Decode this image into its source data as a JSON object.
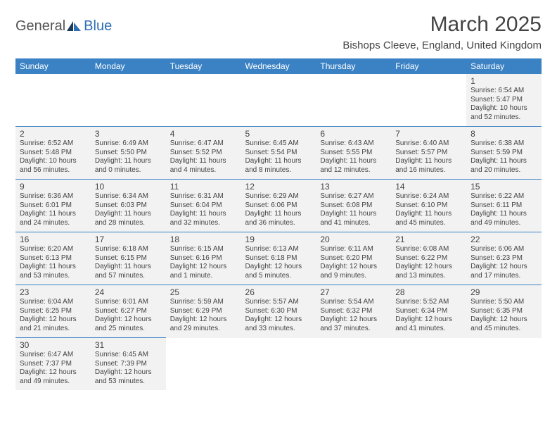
{
  "logo": {
    "text1": "General",
    "text2": "Blue"
  },
  "title": "March 2025",
  "location": "Bishops Cleeve, England, United Kingdom",
  "colors": {
    "header_bg": "#3b82c4",
    "header_text": "#ffffff",
    "cell_bg": "#f2f2f2",
    "border": "#3b82c4",
    "text": "#444444",
    "logo_gray": "#555555",
    "logo_blue": "#2e6fb4"
  },
  "weekdays": [
    "Sunday",
    "Monday",
    "Tuesday",
    "Wednesday",
    "Thursday",
    "Friday",
    "Saturday"
  ],
  "weeks": [
    [
      null,
      null,
      null,
      null,
      null,
      null,
      {
        "n": "1",
        "sunrise": "Sunrise: 6:54 AM",
        "sunset": "Sunset: 5:47 PM",
        "day1": "Daylight: 10 hours",
        "day2": "and 52 minutes."
      }
    ],
    [
      {
        "n": "2",
        "sunrise": "Sunrise: 6:52 AM",
        "sunset": "Sunset: 5:48 PM",
        "day1": "Daylight: 10 hours",
        "day2": "and 56 minutes."
      },
      {
        "n": "3",
        "sunrise": "Sunrise: 6:49 AM",
        "sunset": "Sunset: 5:50 PM",
        "day1": "Daylight: 11 hours",
        "day2": "and 0 minutes."
      },
      {
        "n": "4",
        "sunrise": "Sunrise: 6:47 AM",
        "sunset": "Sunset: 5:52 PM",
        "day1": "Daylight: 11 hours",
        "day2": "and 4 minutes."
      },
      {
        "n": "5",
        "sunrise": "Sunrise: 6:45 AM",
        "sunset": "Sunset: 5:54 PM",
        "day1": "Daylight: 11 hours",
        "day2": "and 8 minutes."
      },
      {
        "n": "6",
        "sunrise": "Sunrise: 6:43 AM",
        "sunset": "Sunset: 5:55 PM",
        "day1": "Daylight: 11 hours",
        "day2": "and 12 minutes."
      },
      {
        "n": "7",
        "sunrise": "Sunrise: 6:40 AM",
        "sunset": "Sunset: 5:57 PM",
        "day1": "Daylight: 11 hours",
        "day2": "and 16 minutes."
      },
      {
        "n": "8",
        "sunrise": "Sunrise: 6:38 AM",
        "sunset": "Sunset: 5:59 PM",
        "day1": "Daylight: 11 hours",
        "day2": "and 20 minutes."
      }
    ],
    [
      {
        "n": "9",
        "sunrise": "Sunrise: 6:36 AM",
        "sunset": "Sunset: 6:01 PM",
        "day1": "Daylight: 11 hours",
        "day2": "and 24 minutes."
      },
      {
        "n": "10",
        "sunrise": "Sunrise: 6:34 AM",
        "sunset": "Sunset: 6:03 PM",
        "day1": "Daylight: 11 hours",
        "day2": "and 28 minutes."
      },
      {
        "n": "11",
        "sunrise": "Sunrise: 6:31 AM",
        "sunset": "Sunset: 6:04 PM",
        "day1": "Daylight: 11 hours",
        "day2": "and 32 minutes."
      },
      {
        "n": "12",
        "sunrise": "Sunrise: 6:29 AM",
        "sunset": "Sunset: 6:06 PM",
        "day1": "Daylight: 11 hours",
        "day2": "and 36 minutes."
      },
      {
        "n": "13",
        "sunrise": "Sunrise: 6:27 AM",
        "sunset": "Sunset: 6:08 PM",
        "day1": "Daylight: 11 hours",
        "day2": "and 41 minutes."
      },
      {
        "n": "14",
        "sunrise": "Sunrise: 6:24 AM",
        "sunset": "Sunset: 6:10 PM",
        "day1": "Daylight: 11 hours",
        "day2": "and 45 minutes."
      },
      {
        "n": "15",
        "sunrise": "Sunrise: 6:22 AM",
        "sunset": "Sunset: 6:11 PM",
        "day1": "Daylight: 11 hours",
        "day2": "and 49 minutes."
      }
    ],
    [
      {
        "n": "16",
        "sunrise": "Sunrise: 6:20 AM",
        "sunset": "Sunset: 6:13 PM",
        "day1": "Daylight: 11 hours",
        "day2": "and 53 minutes."
      },
      {
        "n": "17",
        "sunrise": "Sunrise: 6:18 AM",
        "sunset": "Sunset: 6:15 PM",
        "day1": "Daylight: 11 hours",
        "day2": "and 57 minutes."
      },
      {
        "n": "18",
        "sunrise": "Sunrise: 6:15 AM",
        "sunset": "Sunset: 6:16 PM",
        "day1": "Daylight: 12 hours",
        "day2": "and 1 minute."
      },
      {
        "n": "19",
        "sunrise": "Sunrise: 6:13 AM",
        "sunset": "Sunset: 6:18 PM",
        "day1": "Daylight: 12 hours",
        "day2": "and 5 minutes."
      },
      {
        "n": "20",
        "sunrise": "Sunrise: 6:11 AM",
        "sunset": "Sunset: 6:20 PM",
        "day1": "Daylight: 12 hours",
        "day2": "and 9 minutes."
      },
      {
        "n": "21",
        "sunrise": "Sunrise: 6:08 AM",
        "sunset": "Sunset: 6:22 PM",
        "day1": "Daylight: 12 hours",
        "day2": "and 13 minutes."
      },
      {
        "n": "22",
        "sunrise": "Sunrise: 6:06 AM",
        "sunset": "Sunset: 6:23 PM",
        "day1": "Daylight: 12 hours",
        "day2": "and 17 minutes."
      }
    ],
    [
      {
        "n": "23",
        "sunrise": "Sunrise: 6:04 AM",
        "sunset": "Sunset: 6:25 PM",
        "day1": "Daylight: 12 hours",
        "day2": "and 21 minutes."
      },
      {
        "n": "24",
        "sunrise": "Sunrise: 6:01 AM",
        "sunset": "Sunset: 6:27 PM",
        "day1": "Daylight: 12 hours",
        "day2": "and 25 minutes."
      },
      {
        "n": "25",
        "sunrise": "Sunrise: 5:59 AM",
        "sunset": "Sunset: 6:29 PM",
        "day1": "Daylight: 12 hours",
        "day2": "and 29 minutes."
      },
      {
        "n": "26",
        "sunrise": "Sunrise: 5:57 AM",
        "sunset": "Sunset: 6:30 PM",
        "day1": "Daylight: 12 hours",
        "day2": "and 33 minutes."
      },
      {
        "n": "27",
        "sunrise": "Sunrise: 5:54 AM",
        "sunset": "Sunset: 6:32 PM",
        "day1": "Daylight: 12 hours",
        "day2": "and 37 minutes."
      },
      {
        "n": "28",
        "sunrise": "Sunrise: 5:52 AM",
        "sunset": "Sunset: 6:34 PM",
        "day1": "Daylight: 12 hours",
        "day2": "and 41 minutes."
      },
      {
        "n": "29",
        "sunrise": "Sunrise: 5:50 AM",
        "sunset": "Sunset: 6:35 PM",
        "day1": "Daylight: 12 hours",
        "day2": "and 45 minutes."
      }
    ],
    [
      {
        "n": "30",
        "sunrise": "Sunrise: 6:47 AM",
        "sunset": "Sunset: 7:37 PM",
        "day1": "Daylight: 12 hours",
        "day2": "and 49 minutes."
      },
      {
        "n": "31",
        "sunrise": "Sunrise: 6:45 AM",
        "sunset": "Sunset: 7:39 PM",
        "day1": "Daylight: 12 hours",
        "day2": "and 53 minutes."
      },
      null,
      null,
      null,
      null,
      null
    ]
  ]
}
